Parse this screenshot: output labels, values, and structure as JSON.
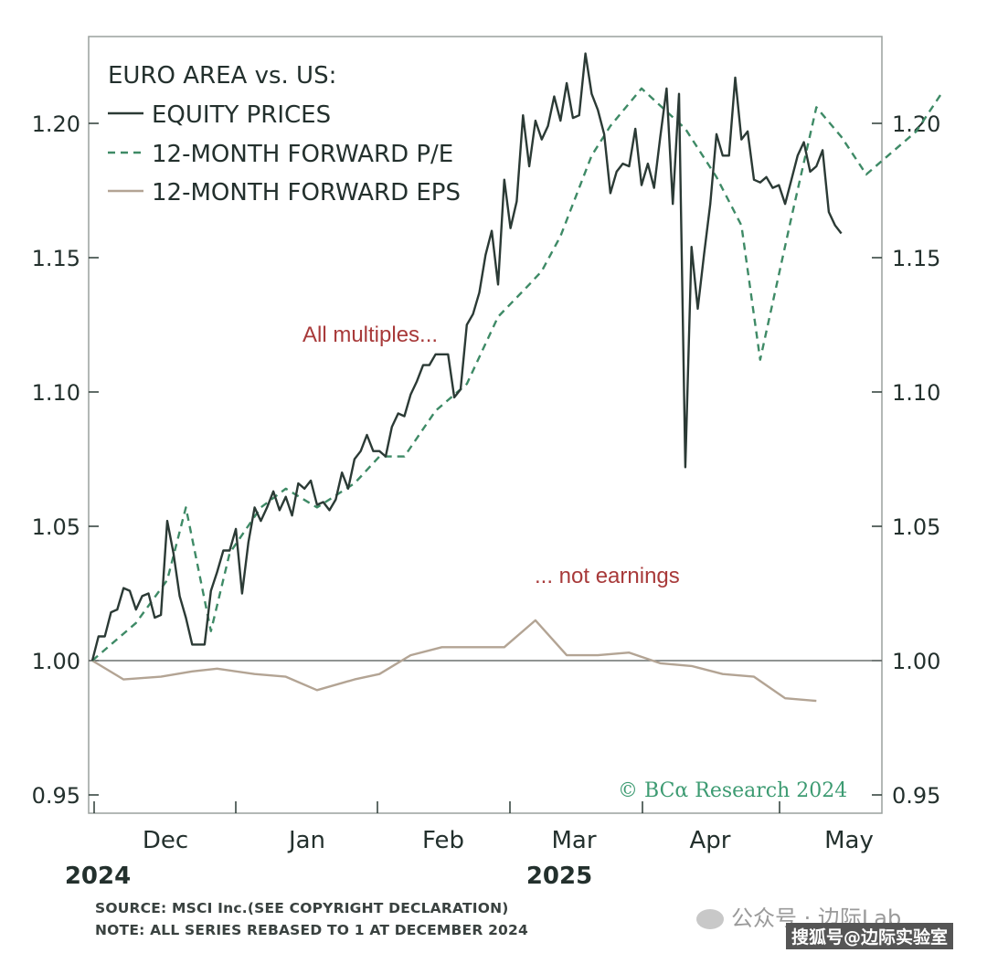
{
  "chart_data": {
    "type": "line",
    "legend": {
      "title": "EURO AREA vs. US:",
      "placement": "top-left",
      "entries": [
        "EQUITY PRICES",
        "12-MONTH FORWARD P/E",
        "12-MONTH FORWARD EPS"
      ]
    },
    "yaxis": {
      "ticks": [
        "1.20",
        "1.15",
        "1.10",
        "1.05",
        "1.00",
        "0.95"
      ],
      "ylim": [
        0.948,
        1.232
      ],
      "both_sides": true
    },
    "xaxis": {
      "months": [
        "Dec",
        "Jan",
        "Feb",
        "Mar",
        "Apr",
        "May"
      ],
      "years": [
        "2024",
        "2025"
      ]
    },
    "reference_line": 1.0,
    "colors": {
      "equity": "#2b3a35",
      "pe": "#3e8a66",
      "eps": "#b3a494",
      "annotation": "#a83a3a"
    },
    "series": [
      {
        "name": "EQUITY PRICES",
        "style": "solid",
        "points": [
          [
            0,
            1.0
          ],
          [
            1,
            1.009
          ],
          [
            2,
            1.009
          ],
          [
            3,
            1.018
          ],
          [
            4,
            1.019
          ],
          [
            5,
            1.027
          ],
          [
            6,
            1.026
          ],
          [
            7,
            1.019
          ],
          [
            8,
            1.024
          ],
          [
            9,
            1.025
          ],
          [
            10,
            1.016
          ],
          [
            11,
            1.017
          ],
          [
            12,
            1.052
          ],
          [
            13,
            1.04
          ],
          [
            14,
            1.024
          ],
          [
            15,
            1.016
          ],
          [
            16,
            1.006
          ],
          [
            17,
            1.006
          ],
          [
            18,
            1.006
          ],
          [
            19,
            1.026
          ],
          [
            20,
            1.033
          ],
          [
            21,
            1.041
          ],
          [
            22,
            1.041
          ],
          [
            23,
            1.049
          ],
          [
            24,
            1.025
          ],
          [
            25,
            1.044
          ],
          [
            26,
            1.057
          ],
          [
            27,
            1.052
          ],
          [
            28,
            1.057
          ],
          [
            29,
            1.063
          ],
          [
            30,
            1.056
          ],
          [
            31,
            1.061
          ],
          [
            32,
            1.054
          ],
          [
            33,
            1.066
          ],
          [
            34,
            1.064
          ],
          [
            35,
            1.067
          ],
          [
            36,
            1.058
          ],
          [
            37,
            1.059
          ],
          [
            38,
            1.056
          ],
          [
            39,
            1.06
          ],
          [
            40,
            1.07
          ],
          [
            41,
            1.064
          ],
          [
            42,
            1.075
          ],
          [
            43,
            1.078
          ],
          [
            44,
            1.084
          ],
          [
            45,
            1.078
          ],
          [
            46,
            1.078
          ],
          [
            47,
            1.076
          ],
          [
            48,
            1.087
          ],
          [
            49,
            1.092
          ],
          [
            50,
            1.091
          ],
          [
            51,
            1.099
          ],
          [
            52,
            1.104
          ],
          [
            53,
            1.11
          ],
          [
            54,
            1.11
          ],
          [
            55,
            1.114
          ],
          [
            56,
            1.114
          ],
          [
            57,
            1.114
          ],
          [
            58,
            1.098
          ],
          [
            59,
            1.101
          ],
          [
            60,
            1.125
          ],
          [
            61,
            1.129
          ],
          [
            62,
            1.137
          ],
          [
            63,
            1.151
          ],
          [
            64,
            1.16
          ],
          [
            65,
            1.14
          ],
          [
            66,
            1.179
          ],
          [
            67,
            1.161
          ],
          [
            68,
            1.171
          ],
          [
            69,
            1.203
          ],
          [
            70,
            1.184
          ],
          [
            71,
            1.201
          ],
          [
            72,
            1.194
          ],
          [
            73,
            1.199
          ],
          [
            74,
            1.21
          ],
          [
            75,
            1.201
          ],
          [
            76,
            1.215
          ],
          [
            77,
            1.202
          ],
          [
            78,
            1.203
          ],
          [
            79,
            1.226
          ],
          [
            80,
            1.211
          ],
          [
            81,
            1.205
          ],
          [
            82,
            1.196
          ],
          [
            83,
            1.174
          ],
          [
            84,
            1.182
          ],
          [
            85,
            1.185
          ],
          [
            86,
            1.184
          ],
          [
            87,
            1.198
          ],
          [
            88,
            1.177
          ],
          [
            89,
            1.185
          ],
          [
            90,
            1.176
          ],
          [
            91,
            1.195
          ],
          [
            92,
            1.213
          ],
          [
            93,
            1.17
          ],
          [
            94,
            1.211
          ],
          [
            95,
            1.072
          ],
          [
            96,
            1.154
          ],
          [
            97,
            1.131
          ],
          [
            98,
            1.151
          ],
          [
            99,
            1.17
          ],
          [
            100,
            1.196
          ],
          [
            101,
            1.188
          ],
          [
            102,
            1.188
          ],
          [
            103,
            1.217
          ],
          [
            104,
            1.194
          ],
          [
            105,
            1.197
          ],
          [
            106,
            1.179
          ],
          [
            107,
            1.178
          ],
          [
            108,
            1.18
          ],
          [
            109,
            1.176
          ],
          [
            110,
            1.177
          ],
          [
            111,
            1.17
          ],
          [
            112,
            1.179
          ],
          [
            113,
            1.188
          ],
          [
            114,
            1.193
          ],
          [
            115,
            1.182
          ],
          [
            116,
            1.184
          ],
          [
            117,
            1.19
          ],
          [
            118,
            1.167
          ],
          [
            119,
            1.162
          ],
          [
            120,
            1.159
          ]
        ]
      },
      {
        "name": "12-MONTH FORWARD P/E",
        "style": "dashed",
        "points": [
          [
            0,
            1.0
          ],
          [
            7,
            1.014
          ],
          [
            12,
            1.03
          ],
          [
            15,
            1.057
          ],
          [
            19,
            1.011
          ],
          [
            22,
            1.04
          ],
          [
            27,
            1.057
          ],
          [
            31,
            1.064
          ],
          [
            36,
            1.057
          ],
          [
            42,
            1.066
          ],
          [
            46,
            1.076
          ],
          [
            50,
            1.076
          ],
          [
            55,
            1.093
          ],
          [
            60,
            1.103
          ],
          [
            65,
            1.128
          ],
          [
            70,
            1.14
          ],
          [
            72,
            1.145
          ],
          [
            75,
            1.158
          ],
          [
            80,
            1.188
          ],
          [
            83,
            1.199
          ],
          [
            88,
            1.213
          ],
          [
            95,
            1.198
          ],
          [
            100,
            1.18
          ],
          [
            104,
            1.162
          ],
          [
            107,
            1.112
          ],
          [
            112,
            1.165
          ],
          [
            116,
            1.206
          ],
          [
            120,
            1.195
          ],
          [
            124,
            1.181
          ],
          [
            128,
            1.189
          ],
          [
            132,
            1.197
          ],
          [
            136,
            1.211
          ]
        ]
      },
      {
        "name": "12-MONTH FORWARD EPS",
        "style": "solid",
        "points": [
          [
            0,
            1.0
          ],
          [
            5,
            0.993
          ],
          [
            11,
            0.994
          ],
          [
            16,
            0.996
          ],
          [
            20,
            0.997
          ],
          [
            26,
            0.995
          ],
          [
            31,
            0.994
          ],
          [
            36,
            0.989
          ],
          [
            42,
            0.993
          ],
          [
            46,
            0.995
          ],
          [
            51,
            1.002
          ],
          [
            56,
            1.005
          ],
          [
            61,
            1.005
          ],
          [
            66,
            1.005
          ],
          [
            71,
            1.015
          ],
          [
            76,
            1.002
          ],
          [
            81,
            1.002
          ],
          [
            86,
            1.003
          ],
          [
            91,
            0.999
          ],
          [
            96,
            0.998
          ],
          [
            101,
            0.995
          ],
          [
            106,
            0.994
          ],
          [
            111,
            0.986
          ],
          [
            116,
            0.985
          ]
        ]
      }
    ],
    "annotations": [
      "All multiples...",
      "... not earnings"
    ],
    "copyright": "© BCα Research 2024"
  },
  "footer": {
    "source": "SOURCE: MSCI Inc.(SEE COPYRIGHT DECLARATION)",
    "note": "NOTE: ALL SERIES REBASED TO 1 AT DECEMBER 2024"
  },
  "watermark": {
    "primary": "公众号 · 边际Lab",
    "secondary": "搜狐号@边际实验室"
  }
}
